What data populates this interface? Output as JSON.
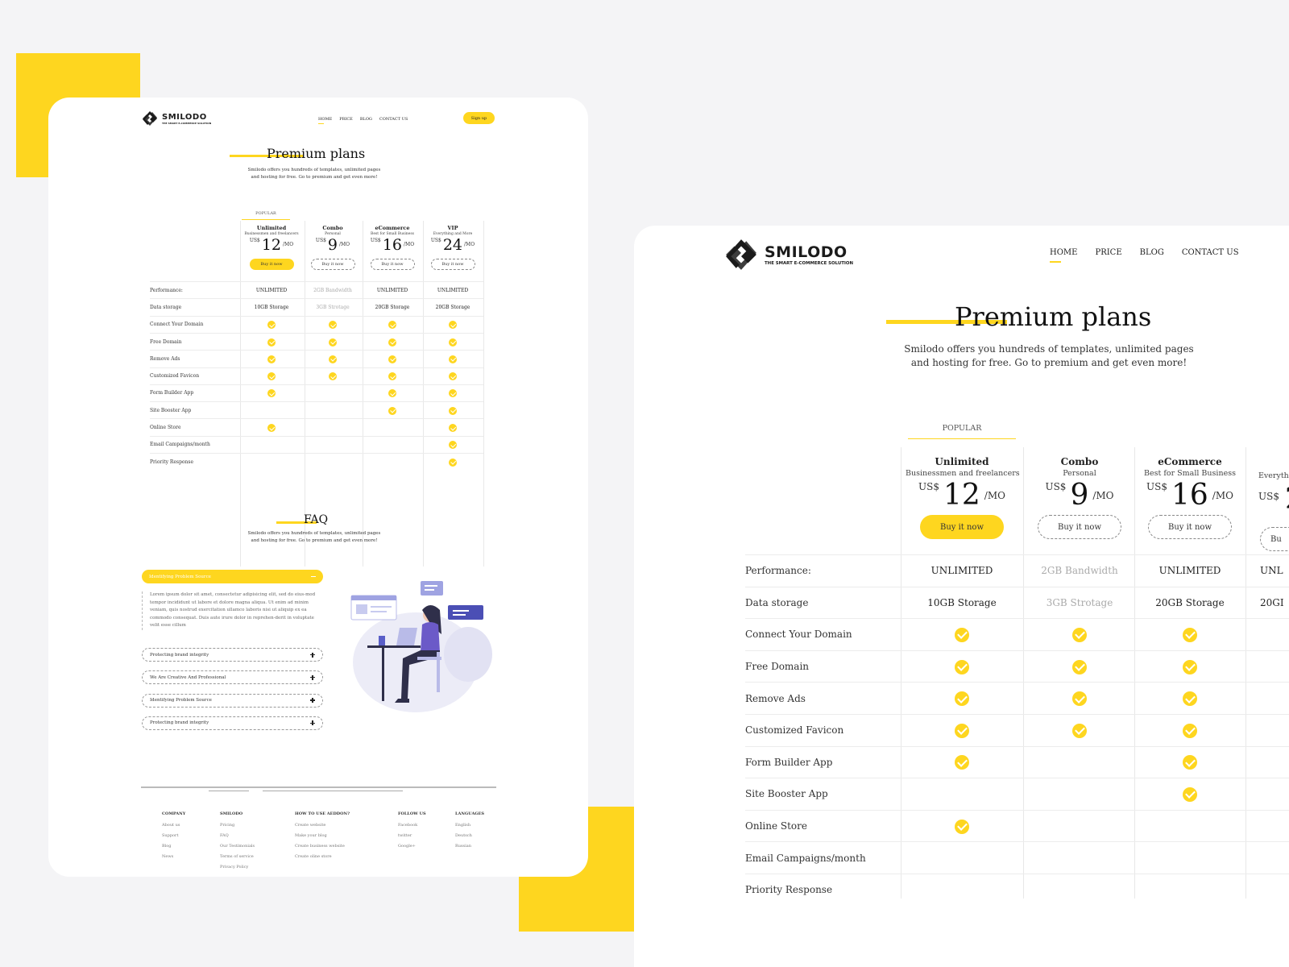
{
  "logo": {
    "name": "SMILODO",
    "tagline": "THE SMART E-COMMERCE SOLUTION"
  },
  "nav": {
    "items": [
      "HOME",
      "PRICE",
      "BLOG",
      "CONTACT US"
    ]
  },
  "signup_label": "Sign up",
  "hero": {
    "title": "Premium plans",
    "subtitle_line1": "Smilodo offers you hundreds of templates, unlimited pages",
    "subtitle_line2": "and hosting for free. Go to premium and get even more!"
  },
  "popular_label": "POPULAR",
  "plans": [
    {
      "name": "Unlimited",
      "desc": "Businessmen and freelancers",
      "currency": "US$",
      "amount": "12",
      "period": "/MO",
      "button": "Buy it now"
    },
    {
      "name": "Combo",
      "desc": "Personal",
      "currency": "US$",
      "amount": "9",
      "period": "/MO",
      "button": "Buy it now"
    },
    {
      "name": "eCommerce",
      "desc": "Best for Small Business",
      "currency": "US$",
      "amount": "16",
      "period": "/MO",
      "button": "Buy it now"
    },
    {
      "name": "VIP",
      "desc": "Everything and More",
      "currency": "US$",
      "amount": "24",
      "period": "/MO",
      "button": "Buy it now"
    }
  ],
  "right_plans": [
    {
      "desc_partial": "Everyth",
      "amount_partial": "2",
      "button_partial": "Bu"
    }
  ],
  "features": [
    {
      "label": "Performance:",
      "values": [
        "UNLIMITED",
        "2GB Bandwidth",
        "UNLIMITED",
        "UNLIMITED"
      ],
      "right_partial": "UNL"
    },
    {
      "label": "Data storage",
      "values": [
        "10GB Storage",
        "3GB Strotage",
        "20GB Storage",
        "20GB Storage"
      ],
      "right_partial": "20GI"
    },
    {
      "label": "Connect Your Domain",
      "checks": [
        true,
        true,
        true,
        true
      ]
    },
    {
      "label": "Free Domain",
      "checks": [
        true,
        true,
        true,
        true
      ]
    },
    {
      "label": "Remove Ads",
      "checks": [
        true,
        true,
        true,
        true
      ]
    },
    {
      "label": "Customized Favicon",
      "checks": [
        true,
        true,
        true,
        true
      ]
    },
    {
      "label": "Form Builder App",
      "checks": [
        true,
        false,
        true,
        true
      ]
    },
    {
      "label": "Site Booster App",
      "checks": [
        false,
        false,
        true,
        true
      ]
    },
    {
      "label": "Online Store",
      "checks": [
        true,
        false,
        false,
        true
      ]
    },
    {
      "label": "Email Campaigns/month",
      "checks": [
        false,
        false,
        false,
        true
      ]
    },
    {
      "label": "Priority Response",
      "checks": [
        false,
        false,
        false,
        true
      ]
    }
  ],
  "faq": {
    "title": "FAQ",
    "subtitle_line1": "Smilodo offers you hundreds of templates, unlimited pages",
    "subtitle_line2": "and hosting for free. Go to premium and get even more!",
    "open_item": "Identifying Problem Source",
    "open_body": "Lorem ipsum dolor sit amet, consectetur adipisicing elit, sed do eius-mod tempor incididunt ut labore et dolore magna aliqua. Ut enim ad minim veniam, quis nostrud exercitation ullamco laboris nisi ut aliquip ex ea commodo consequat. Duis aute irure dolor in reprehen-derit in voluptate velit esse cillum",
    "items": [
      "Protecting brand integrity",
      "We Are Creative And Professional",
      "Identifying Problem Source",
      "Protecting brand integrity"
    ]
  },
  "footer": {
    "columns": [
      {
        "heading": "COMPANY",
        "links": [
          "About us",
          "Support",
          "Blog",
          "News"
        ]
      },
      {
        "heading": "SMILODO",
        "links": [
          "Pricing",
          "FAQ",
          "Our Testimonials",
          "Terms of service",
          "Privacy Policy"
        ]
      },
      {
        "heading": "HOW TO USE AEDDON?",
        "links": [
          "Create website",
          "Make your blog",
          "Create business website",
          "Create oline store"
        ]
      },
      {
        "heading": "FOLLOW US",
        "links": [
          "Facebook",
          "twitter",
          "Google+"
        ]
      },
      {
        "heading": "LANGUAGES",
        "links": [
          "English",
          "Deutsch",
          "Russian"
        ]
      }
    ]
  },
  "colors": {
    "accent": "#fed61f",
    "background": "#f4f4f6"
  }
}
